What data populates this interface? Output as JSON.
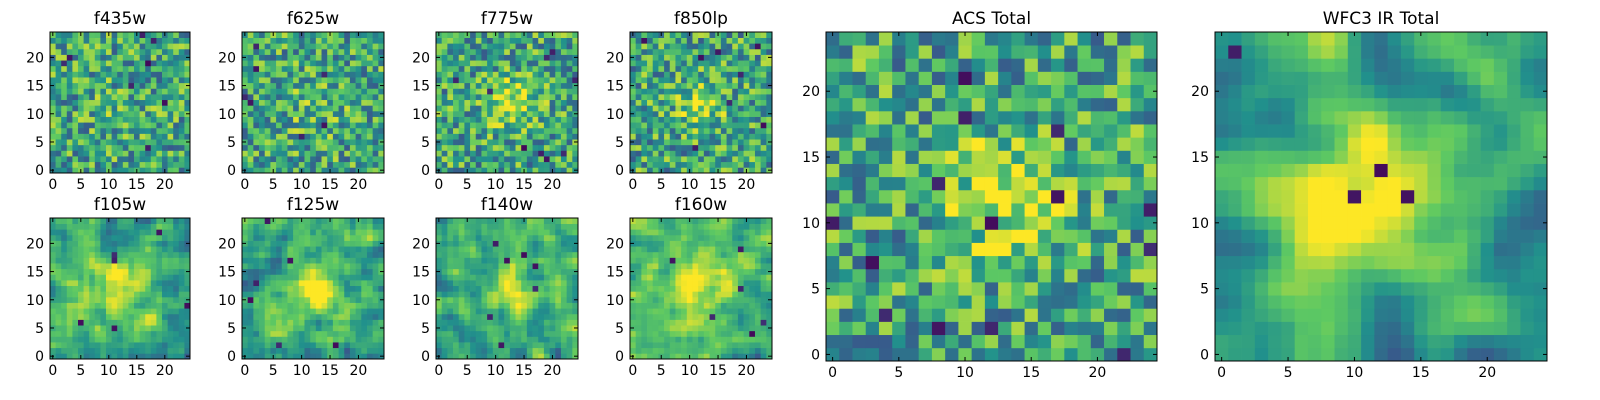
{
  "figure": {
    "background": "#ffffff",
    "colormap": "viridis",
    "colormap_stops": [
      "#440154",
      "#3b528b",
      "#21918c",
      "#5ec962",
      "#fde725"
    ]
  },
  "chart_data": [
    {
      "type": "heatmap",
      "title": "f435w",
      "grid_size": [
        25,
        25
      ],
      "xlim": [
        0,
        24
      ],
      "ylim": [
        0,
        24
      ],
      "xticks": [
        "0",
        "5",
        "10",
        "15",
        "20"
      ],
      "yticks": [
        "0",
        "5",
        "10",
        "15",
        "20"
      ],
      "seed": 11,
      "smooth": 0,
      "blob": {
        "center": [
          12,
          11
        ],
        "radius": 4,
        "strength": 0.05
      },
      "dark_pixels": 8
    },
    {
      "type": "heatmap",
      "title": "f625w",
      "grid_size": [
        25,
        25
      ],
      "xlim": [
        0,
        24
      ],
      "ylim": [
        0,
        24
      ],
      "xticks": [
        "0",
        "5",
        "10",
        "15",
        "20"
      ],
      "yticks": [
        "0",
        "5",
        "10",
        "15",
        "20"
      ],
      "seed": 23,
      "smooth": 0,
      "blob": {
        "center": [
          12,
          12
        ],
        "radius": 4,
        "strength": 0.1
      },
      "dark_pixels": 7
    },
    {
      "type": "heatmap",
      "title": "f775w",
      "grid_size": [
        25,
        25
      ],
      "xlim": [
        0,
        24
      ],
      "ylim": [
        0,
        24
      ],
      "xticks": [
        "0",
        "5",
        "10",
        "15",
        "20"
      ],
      "yticks": [
        "0",
        "5",
        "10",
        "15",
        "20"
      ],
      "seed": 37,
      "smooth": 0,
      "blob": {
        "center": [
          13,
          12
        ],
        "radius": 3,
        "strength": 0.35
      },
      "dark_pixels": 9
    },
    {
      "type": "heatmap",
      "title": "f850lp",
      "grid_size": [
        25,
        25
      ],
      "xlim": [
        0,
        24
      ],
      "ylim": [
        0,
        24
      ],
      "xticks": [
        "0",
        "5",
        "10",
        "15",
        "20"
      ],
      "yticks": [
        "0",
        "5",
        "10",
        "15",
        "20"
      ],
      "seed": 41,
      "smooth": 0,
      "blob": {
        "center": [
          12,
          12
        ],
        "radius": 3,
        "strength": 0.25
      },
      "dark_pixels": 8
    },
    {
      "type": "heatmap",
      "title": "f105w",
      "grid_size": [
        25,
        25
      ],
      "xlim": [
        0,
        24
      ],
      "ylim": [
        0,
        24
      ],
      "xticks": [
        "0",
        "5",
        "10",
        "15",
        "20"
      ],
      "yticks": [
        "0",
        "5",
        "10",
        "15",
        "20"
      ],
      "seed": 53,
      "smooth": 1,
      "blob": {
        "center": [
          12,
          12
        ],
        "radius": 4,
        "strength": 0.3
      },
      "dark_pixels": 6
    },
    {
      "type": "heatmap",
      "title": "f125w",
      "grid_size": [
        25,
        25
      ],
      "xlim": [
        0,
        24
      ],
      "ylim": [
        0,
        24
      ],
      "xticks": [
        "0",
        "5",
        "10",
        "15",
        "20"
      ],
      "yticks": [
        "0",
        "5",
        "10",
        "15",
        "20"
      ],
      "seed": 67,
      "smooth": 1,
      "blob": {
        "center": [
          12,
          12
        ],
        "radius": 3,
        "strength": 0.45
      },
      "dark_pixels": 6
    },
    {
      "type": "heatmap",
      "title": "f140w",
      "grid_size": [
        25,
        25
      ],
      "xlim": [
        0,
        24
      ],
      "ylim": [
        0,
        24
      ],
      "xticks": [
        "0",
        "5",
        "10",
        "15",
        "20"
      ],
      "yticks": [
        "0",
        "5",
        "10",
        "15",
        "20"
      ],
      "seed": 79,
      "smooth": 1,
      "blob": {
        "center": [
          13,
          12
        ],
        "radius": 3,
        "strength": 0.35
      },
      "dark_pixels": 7
    },
    {
      "type": "heatmap",
      "title": "f160w",
      "grid_size": [
        25,
        25
      ],
      "xlim": [
        0,
        24
      ],
      "ylim": [
        0,
        24
      ],
      "xticks": [
        "0",
        "5",
        "10",
        "15",
        "20"
      ],
      "yticks": [
        "0",
        "5",
        "10",
        "15",
        "20"
      ],
      "seed": 83,
      "smooth": 1,
      "blob": {
        "center": [
          12,
          12
        ],
        "radius": 4,
        "strength": 0.4
      },
      "dark_pixels": 6
    },
    {
      "type": "heatmap",
      "title": "ACS Total",
      "grid_size": [
        25,
        25
      ],
      "xlim": [
        0,
        24
      ],
      "ylim": [
        0,
        24
      ],
      "xticks": [
        "0",
        "5",
        "10",
        "15",
        "20"
      ],
      "yticks": [
        "0",
        "5",
        "10",
        "15",
        "20"
      ],
      "seed": 97,
      "smooth": 0,
      "blob": {
        "center": [
          13,
          12
        ],
        "radius": 3,
        "strength": 0.35
      },
      "dark_pixels": 14
    },
    {
      "type": "heatmap",
      "title": "WFC3 IR Total",
      "grid_size": [
        25,
        25
      ],
      "xlim": [
        0,
        24
      ],
      "ylim": [
        0,
        24
      ],
      "xticks": [
        "0",
        "5",
        "10",
        "15",
        "20"
      ],
      "yticks": [
        "0",
        "5",
        "10",
        "15",
        "20"
      ],
      "seed": 101,
      "smooth": 2,
      "blob": {
        "center": [
          12,
          12
        ],
        "radius": 4,
        "strength": 0.55
      },
      "dark_pixels": 4
    }
  ]
}
